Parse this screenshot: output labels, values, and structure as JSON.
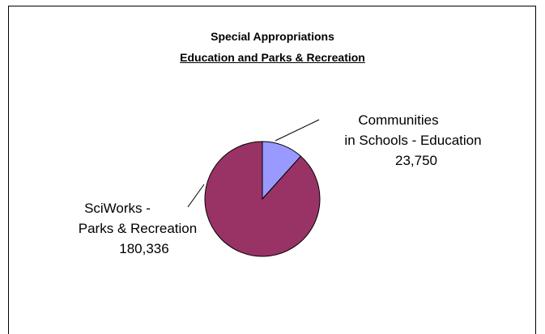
{
  "chart_data": {
    "type": "pie",
    "title": "Special Appropriations",
    "subtitle": "Education and Parks & Recreation",
    "slices": [
      {
        "lines": [
          "Communities",
          "in Schools - Education"
        ],
        "value_label": "23,750",
        "value": 23750,
        "color": "#9999ff"
      },
      {
        "lines": [
          "SciWorks -",
          "Parks & Recreation"
        ],
        "value_label": "180,336",
        "value": 180336,
        "color": "#993366"
      }
    ]
  }
}
